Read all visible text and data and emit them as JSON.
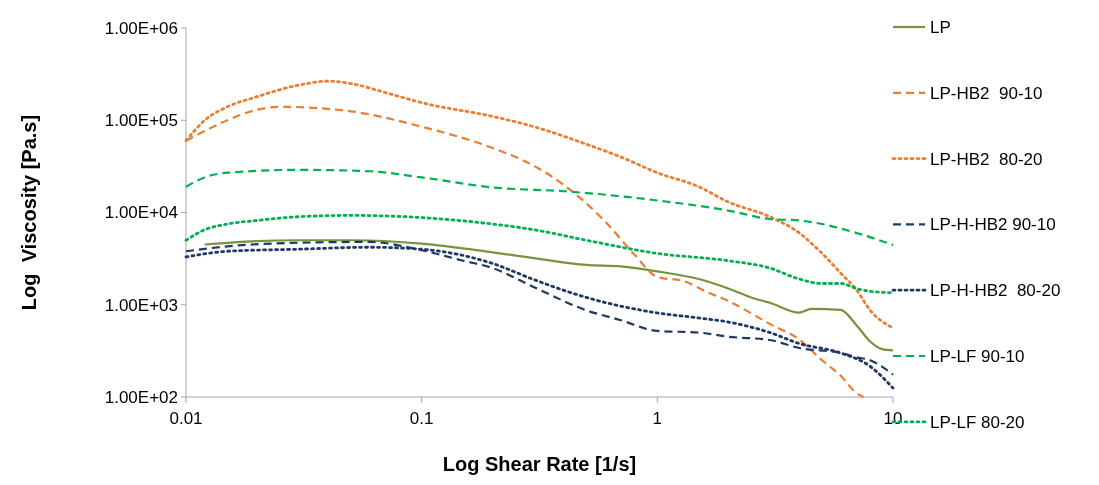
{
  "chart_data": {
    "type": "line",
    "xlabel": "Log Shear Rate [1/s]",
    "ylabel": "Log  Viscosity [Pa.s]",
    "log": "xy",
    "grid": false,
    "legend": "right",
    "xlim": [
      0.01,
      10
    ],
    "xticks": [
      0.01,
      0.1,
      1,
      10
    ],
    "ylim": [
      100,
      1000000
    ],
    "yticks": [
      {
        "value": 100,
        "label": "1.00E+02"
      },
      {
        "value": 1000,
        "label": "1.00E+03"
      },
      {
        "value": 10000,
        "label": "1.00E+04"
      },
      {
        "value": 100000,
        "label": "1.00E+05"
      },
      {
        "value": 1000000,
        "label": "1.00E+06"
      }
    ],
    "series": [
      {
        "name": "LP",
        "color": "#77933c",
        "line_style": "solid",
        "x": [
          0.012,
          0.02,
          0.03,
          0.05,
          0.1,
          0.2,
          0.3,
          0.5,
          0.7,
          1,
          1.5,
          2,
          2.5,
          3,
          4,
          4.5,
          6,
          7,
          8,
          9,
          10
        ],
        "values": [
          4500,
          4900,
          5000,
          5000,
          4600,
          3700,
          3200,
          2700,
          2600,
          2300,
          1900,
          1500,
          1200,
          1050,
          820,
          900,
          880,
          600,
          400,
          330,
          320
        ]
      },
      {
        "name": "LP-HB2  90-10",
        "color": "#ed7d31",
        "line_style": "dashed",
        "x": [
          0.01,
          0.015,
          0.02,
          0.025,
          0.05,
          0.1,
          0.2,
          0.3,
          0.4,
          0.6,
          0.8,
          1,
          1.3,
          1.6,
          2,
          3,
          4,
          5,
          6,
          7,
          7.5
        ],
        "values": [
          60000,
          100000,
          130000,
          140000,
          125000,
          85000,
          50000,
          32000,
          20000,
          8000,
          3500,
          2000,
          1800,
          1400,
          1100,
          620,
          420,
          250,
          170,
          110,
          100
        ]
      },
      {
        "name": "LP-HB2  80-20",
        "color": "#ed7d31",
        "line_style": "dotted",
        "x": [
          0.01,
          0.012,
          0.015,
          0.02,
          0.03,
          0.04,
          0.05,
          0.07,
          0.1,
          0.2,
          0.3,
          0.5,
          0.7,
          1,
          1.5,
          2,
          3,
          4,
          5,
          6,
          7,
          8,
          10
        ],
        "values": [
          60000,
          100000,
          140000,
          180000,
          240000,
          265000,
          250000,
          200000,
          155000,
          110000,
          85000,
          55000,
          40000,
          27000,
          19000,
          13000,
          9000,
          6000,
          3600,
          2200,
          1450,
          870,
          560
        ]
      },
      {
        "name": "LP-H-HB2 90-10",
        "color": "#1f3864",
        "line_style": "dashed",
        "x": [
          0.01,
          0.015,
          0.03,
          0.06,
          0.1,
          0.15,
          0.2,
          0.3,
          0.5,
          0.7,
          1,
          1.5,
          2,
          3,
          4,
          6,
          7,
          8,
          10
        ],
        "values": [
          3800,
          4300,
          4700,
          4800,
          3900,
          3000,
          2500,
          1550,
          870,
          680,
          520,
          500,
          450,
          415,
          340,
          300,
          270,
          250,
          175
        ]
      },
      {
        "name": "LP-H-HB2  80-20",
        "color": "#1f3864",
        "line_style": "dotted",
        "x": [
          0.01,
          0.015,
          0.03,
          0.06,
          0.1,
          0.2,
          0.3,
          0.5,
          1,
          1.5,
          2,
          3,
          4,
          6,
          8,
          10
        ],
        "values": [
          3300,
          3800,
          4000,
          4200,
          4000,
          2800,
          1870,
          1200,
          815,
          720,
          650,
          500,
          380,
          300,
          215,
          125
        ]
      },
      {
        "name": "LP-LF 90-10",
        "color": "#00b050",
        "line_style": "dashed",
        "x": [
          0.01,
          0.012,
          0.015,
          0.03,
          0.06,
          0.1,
          0.2,
          0.4,
          0.7,
          1,
          2,
          3,
          4,
          5,
          7,
          10
        ],
        "values": [
          19000,
          24000,
          27000,
          29000,
          28000,
          24000,
          18700,
          17000,
          15000,
          13500,
          10500,
          8500,
          8200,
          7500,
          6000,
          4450
        ]
      },
      {
        "name": "LP-LF 80-20",
        "color": "#00b050",
        "line_style": "dotted",
        "x": [
          0.01,
          0.012,
          0.015,
          0.02,
          0.03,
          0.05,
          0.1,
          0.2,
          0.3,
          0.5,
          1,
          2,
          3,
          4,
          5,
          6,
          7,
          8,
          10
        ],
        "values": [
          5000,
          6500,
          7500,
          8200,
          9000,
          9300,
          8800,
          7500,
          6500,
          5000,
          3600,
          3000,
          2500,
          1900,
          1700,
          1700,
          1500,
          1400,
          1350
        ]
      }
    ]
  }
}
